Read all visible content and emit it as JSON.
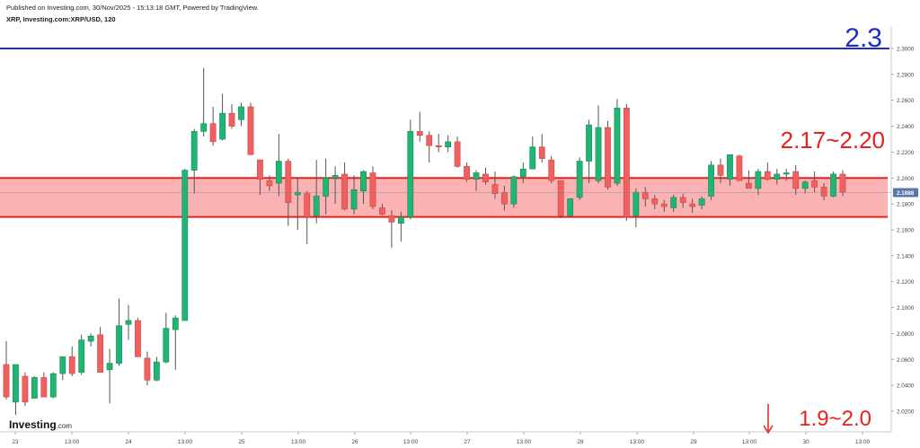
{
  "header": {
    "published": "Published on Investing.com, 30/Nov/2025 - 15:13:18 GMT, Powered by TradingView.",
    "symbol": "XRP, Investing.com:XRP/USD, 120"
  },
  "logo": {
    "main": "Investing",
    "suffix": ".com"
  },
  "colors": {
    "up": "#1fb573",
    "down": "#f0605f",
    "wick": "#555555",
    "zone_fill": "#fab2b2",
    "zone_line": "#e8201e",
    "level_line": "#1f2cc7",
    "annotation_red": "#e8201e",
    "annotation_blue": "#1f2cc7",
    "price_badge": "#5877a8"
  },
  "chart_data": {
    "type": "candlestick",
    "timeframe": "120",
    "pair": "XRP/USD",
    "y_axis": {
      "ylim": [
        2.0,
        2.315
      ],
      "ticks": [
        "2.0200",
        "2.0400",
        "2.0600",
        "2.0800",
        "2.1000",
        "2.1200",
        "2.1400",
        "2.1600",
        "2.1800",
        "2.2000",
        "2.2200",
        "2.2400",
        "2.2600",
        "2.2800",
        "2.3000"
      ],
      "position": "right"
    },
    "x_axis": {
      "labels": [
        "23",
        "13:00",
        "24",
        "13:00",
        "25",
        "13:00",
        "26",
        "13:00",
        "27",
        "13:00",
        "28",
        "13:00",
        "29",
        "13:00",
        "30",
        "13:00"
      ]
    },
    "last_price": "2.1888",
    "horizontal_line": {
      "value": 2.3,
      "label": "2.3"
    },
    "zone": {
      "low": 2.17,
      "high": 2.2,
      "label": "2.17~2.20"
    },
    "target_annotation": {
      "label": "1.9~2.0",
      "arrow": "down"
    },
    "candles": [
      {
        "o": 2.056,
        "h": 2.074,
        "l": 2.029,
        "c": 2.031
      },
      {
        "o": 2.027,
        "h": 2.056,
        "l": 2.017,
        "c": 2.056
      },
      {
        "o": 2.047,
        "h": 2.05,
        "l": 2.024,
        "c": 2.027
      },
      {
        "o": 2.03,
        "h": 2.047,
        "l": 2.03,
        "c": 2.046
      },
      {
        "o": 2.046,
        "h": 2.05,
        "l": 2.031,
        "c": 2.031
      },
      {
        "o": 2.031,
        "h": 2.05,
        "l": 2.03,
        "c": 2.049
      },
      {
        "o": 2.049,
        "h": 2.062,
        "l": 2.044,
        "c": 2.062
      },
      {
        "o": 2.062,
        "h": 2.07,
        "l": 2.047,
        "c": 2.049
      },
      {
        "o": 2.05,
        "h": 2.079,
        "l": 2.048,
        "c": 2.075
      },
      {
        "o": 2.074,
        "h": 2.08,
        "l": 2.07,
        "c": 2.078
      },
      {
        "o": 2.079,
        "h": 2.085,
        "l": 2.05,
        "c": 2.05
      },
      {
        "o": 2.052,
        "h": 2.068,
        "l": 2.026,
        "c": 2.057
      },
      {
        "o": 2.057,
        "h": 2.107,
        "l": 2.055,
        "c": 2.086
      },
      {
        "o": 2.087,
        "h": 2.102,
        "l": 2.075,
        "c": 2.09
      },
      {
        "o": 2.09,
        "h": 2.092,
        "l": 2.062,
        "c": 2.062
      },
      {
        "o": 2.061,
        "h": 2.066,
        "l": 2.04,
        "c": 2.044
      },
      {
        "o": 2.044,
        "h": 2.062,
        "l": 2.043,
        "c": 2.058
      },
      {
        "o": 2.058,
        "h": 2.096,
        "l": 2.057,
        "c": 2.084
      },
      {
        "o": 2.083,
        "h": 2.094,
        "l": 2.052,
        "c": 2.092
      },
      {
        "o": 2.09,
        "h": 2.207,
        "l": 2.09,
        "c": 2.206
      },
      {
        "o": 2.206,
        "h": 2.238,
        "l": 2.188,
        "c": 2.236
      },
      {
        "o": 2.236,
        "h": 2.285,
        "l": 2.232,
        "c": 2.242
      },
      {
        "o": 2.242,
        "h": 2.255,
        "l": 2.225,
        "c": 2.228
      },
      {
        "o": 2.23,
        "h": 2.265,
        "l": 2.229,
        "c": 2.25
      },
      {
        "o": 2.25,
        "h": 2.257,
        "l": 2.238,
        "c": 2.24
      },
      {
        "o": 2.245,
        "h": 2.258,
        "l": 2.24,
        "c": 2.255
      },
      {
        "o": 2.255,
        "h": 2.258,
        "l": 2.218,
        "c": 2.218
      },
      {
        "o": 2.214,
        "h": 2.213,
        "l": 2.187,
        "c": 2.199
      },
      {
        "o": 2.198,
        "h": 2.202,
        "l": 2.19,
        "c": 2.194
      },
      {
        "o": 2.196,
        "h": 2.234,
        "l": 2.186,
        "c": 2.213
      },
      {
        "o": 2.213,
        "h": 2.215,
        "l": 2.163,
        "c": 2.181
      },
      {
        "o": 2.187,
        "h": 2.2,
        "l": 2.16,
        "c": 2.189
      },
      {
        "o": 2.188,
        "h": 2.19,
        "l": 2.149,
        "c": 2.17
      },
      {
        "o": 2.171,
        "h": 2.214,
        "l": 2.165,
        "c": 2.186
      },
      {
        "o": 2.186,
        "h": 2.215,
        "l": 2.172,
        "c": 2.2
      },
      {
        "o": 2.2,
        "h": 2.209,
        "l": 2.18,
        "c": 2.202
      },
      {
        "o": 2.203,
        "h": 2.212,
        "l": 2.175,
        "c": 2.176
      },
      {
        "o": 2.176,
        "h": 2.202,
        "l": 2.172,
        "c": 2.191
      },
      {
        "o": 2.19,
        "h": 2.206,
        "l": 2.18,
        "c": 2.205
      },
      {
        "o": 2.204,
        "h": 2.209,
        "l": 2.176,
        "c": 2.178
      },
      {
        "o": 2.177,
        "h": 2.18,
        "l": 2.171,
        "c": 2.172
      },
      {
        "o": 2.171,
        "h": 2.175,
        "l": 2.146,
        "c": 2.166
      },
      {
        "o": 2.165,
        "h": 2.174,
        "l": 2.151,
        "c": 2.17
      },
      {
        "o": 2.17,
        "h": 2.245,
        "l": 2.168,
        "c": 2.236
      },
      {
        "o": 2.236,
        "h": 2.251,
        "l": 2.228,
        "c": 2.233
      },
      {
        "o": 2.233,
        "h": 2.236,
        "l": 2.212,
        "c": 2.225
      },
      {
        "o": 2.225,
        "h": 2.234,
        "l": 2.22,
        "c": 2.224
      },
      {
        "o": 2.224,
        "h": 2.233,
        "l": 2.22,
        "c": 2.228
      },
      {
        "o": 2.228,
        "h": 2.232,
        "l": 2.208,
        "c": 2.209
      },
      {
        "o": 2.209,
        "h": 2.212,
        "l": 2.197,
        "c": 2.199
      },
      {
        "o": 2.199,
        "h": 2.206,
        "l": 2.19,
        "c": 2.204
      },
      {
        "o": 2.203,
        "h": 2.208,
        "l": 2.195,
        "c": 2.197
      },
      {
        "o": 2.195,
        "h": 2.205,
        "l": 2.184,
        "c": 2.188
      },
      {
        "o": 2.189,
        "h": 2.194,
        "l": 2.175,
        "c": 2.18
      },
      {
        "o": 2.18,
        "h": 2.202,
        "l": 2.177,
        "c": 2.201
      },
      {
        "o": 2.201,
        "h": 2.212,
        "l": 2.196,
        "c": 2.207
      },
      {
        "o": 2.207,
        "h": 2.232,
        "l": 2.207,
        "c": 2.224
      },
      {
        "o": 2.224,
        "h": 2.234,
        "l": 2.212,
        "c": 2.215
      },
      {
        "o": 2.214,
        "h": 2.217,
        "l": 2.196,
        "c": 2.198
      },
      {
        "o": 2.198,
        "h": 2.198,
        "l": 2.169,
        "c": 2.171
      },
      {
        "o": 2.171,
        "h": 2.184,
        "l": 2.17,
        "c": 2.184
      },
      {
        "o": 2.185,
        "h": 2.216,
        "l": 2.183,
        "c": 2.213
      },
      {
        "o": 2.213,
        "h": 2.245,
        "l": 2.196,
        "c": 2.241
      },
      {
        "o": 2.198,
        "h": 2.256,
        "l": 2.196,
        "c": 2.239
      },
      {
        "o": 2.239,
        "h": 2.244,
        "l": 2.191,
        "c": 2.193
      },
      {
        "o": 2.196,
        "h": 2.261,
        "l": 2.194,
        "c": 2.254
      },
      {
        "o": 2.254,
        "h": 2.257,
        "l": 2.167,
        "c": 2.17
      },
      {
        "o": 2.171,
        "h": 2.192,
        "l": 2.162,
        "c": 2.189
      },
      {
        "o": 2.189,
        "h": 2.193,
        "l": 2.178,
        "c": 2.184
      },
      {
        "o": 2.184,
        "h": 2.187,
        "l": 2.176,
        "c": 2.18
      },
      {
        "o": 2.18,
        "h": 2.183,
        "l": 2.174,
        "c": 2.178
      },
      {
        "o": 2.177,
        "h": 2.187,
        "l": 2.174,
        "c": 2.185
      },
      {
        "o": 2.185,
        "h": 2.188,
        "l": 2.177,
        "c": 2.181
      },
      {
        "o": 2.18,
        "h": 2.184,
        "l": 2.173,
        "c": 2.178
      },
      {
        "o": 2.179,
        "h": 2.186,
        "l": 2.176,
        "c": 2.184
      },
      {
        "o": 2.186,
        "h": 2.213,
        "l": 2.183,
        "c": 2.21
      },
      {
        "o": 2.21,
        "h": 2.215,
        "l": 2.196,
        "c": 2.202
      },
      {
        "o": 2.199,
        "h": 2.218,
        "l": 2.194,
        "c": 2.218
      },
      {
        "o": 2.217,
        "h": 2.218,
        "l": 2.198,
        "c": 2.198
      },
      {
        "o": 2.196,
        "h": 2.206,
        "l": 2.192,
        "c": 2.192
      },
      {
        "o": 2.192,
        "h": 2.207,
        "l": 2.187,
        "c": 2.205
      },
      {
        "o": 2.205,
        "h": 2.212,
        "l": 2.198,
        "c": 2.199
      },
      {
        "o": 2.199,
        "h": 2.207,
        "l": 2.195,
        "c": 2.203
      },
      {
        "o": 2.203,
        "h": 2.207,
        "l": 2.198,
        "c": 2.204
      },
      {
        "o": 2.205,
        "h": 2.21,
        "l": 2.187,
        "c": 2.192
      },
      {
        "o": 2.192,
        "h": 2.198,
        "l": 2.188,
        "c": 2.197
      },
      {
        "o": 2.198,
        "h": 2.205,
        "l": 2.189,
        "c": 2.193
      },
      {
        "o": 2.193,
        "h": 2.196,
        "l": 2.183,
        "c": 2.186
      },
      {
        "o": 2.186,
        "h": 2.205,
        "l": 2.185,
        "c": 2.203
      },
      {
        "o": 2.203,
        "h": 2.206,
        "l": 2.186,
        "c": 2.189
      }
    ]
  }
}
